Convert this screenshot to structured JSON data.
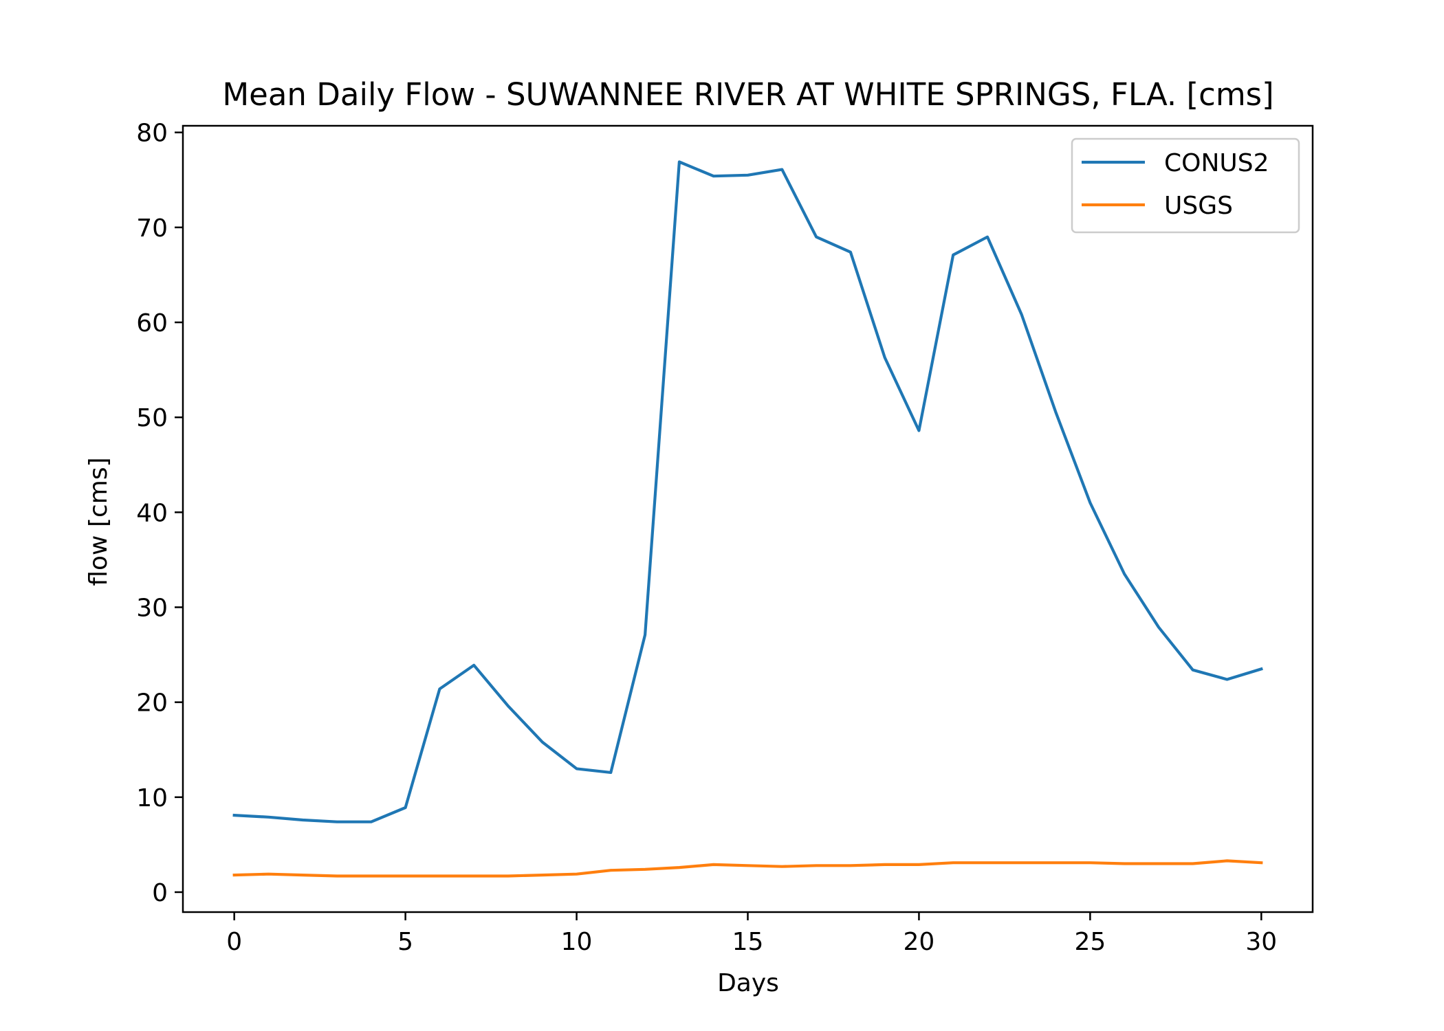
{
  "chart_data": {
    "type": "line",
    "title": "Mean Daily Flow - SUWANNEE RIVER AT WHITE SPRINGS, FLA. [cms]",
    "xlabel": "Days",
    "ylabel": "flow [cms]",
    "xlim": [
      -1.5,
      31.5
    ],
    "ylim": [
      -2.1,
      80.7
    ],
    "xticks": [
      0,
      5,
      10,
      15,
      20,
      25,
      30
    ],
    "yticks": [
      0,
      10,
      20,
      30,
      40,
      50,
      60,
      70,
      80
    ],
    "grid": false,
    "legend_position": "upper right",
    "x": [
      0,
      1,
      2,
      3,
      4,
      5,
      6,
      7,
      8,
      9,
      10,
      11,
      12,
      13,
      14,
      15,
      16,
      17,
      18,
      19,
      20,
      21,
      22,
      23,
      24,
      25,
      26,
      27,
      28,
      29,
      30
    ],
    "series": [
      {
        "name": "CONUS2",
        "color": "#1f77b4",
        "values": [
          8.1,
          7.9,
          7.6,
          7.4,
          7.4,
          8.9,
          21.4,
          23.9,
          19.6,
          15.8,
          13.0,
          12.6,
          27.1,
          76.9,
          75.4,
          75.5,
          76.1,
          69.0,
          67.4,
          56.3,
          48.6,
          67.1,
          69.0,
          60.8,
          50.5,
          41.0,
          33.5,
          27.9,
          23.4,
          22.4,
          23.5
        ]
      },
      {
        "name": "USGS",
        "color": "#ff7f0e",
        "values": [
          1.8,
          1.9,
          1.8,
          1.7,
          1.7,
          1.7,
          1.7,
          1.7,
          1.7,
          1.8,
          1.9,
          2.3,
          2.4,
          2.6,
          2.9,
          2.8,
          2.7,
          2.8,
          2.8,
          2.9,
          2.9,
          3.1,
          3.1,
          3.1,
          3.1,
          3.1,
          3.0,
          3.0,
          3.0,
          3.3,
          3.1
        ]
      }
    ]
  }
}
